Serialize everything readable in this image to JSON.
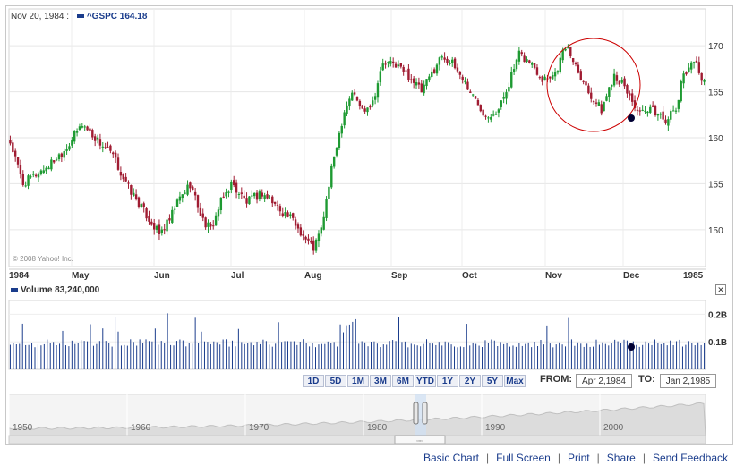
{
  "header": {
    "date": "Nov 20, 1984 :",
    "symbol": "^GSPC",
    "value": "164.18"
  },
  "copyright": "© 2008 Yahoo! Inc.",
  "volume": {
    "label": "Volume",
    "value": "83,240,000",
    "ticks": [
      "0.2B",
      "0.1B"
    ]
  },
  "range_buttons": [
    "1D",
    "5D",
    "1M",
    "3M",
    "6M",
    "YTD",
    "1Y",
    "2Y",
    "5Y",
    "Max"
  ],
  "from_label": "FROM:",
  "from_value": "Apr 2,1984",
  "to_label": "TO:",
  "to_value": "Jan 2,1985",
  "overview_years": [
    "1950",
    "1960",
    "1970",
    "1980",
    "1990",
    "2000"
  ],
  "links": [
    "Basic Chart",
    "Full Screen",
    "Print",
    "Share",
    "Send Feedback"
  ],
  "colors": {
    "up": "#1e9a32",
    "down": "#a01c32",
    "accent": "#1a3c8c",
    "highlight": "#cc0000"
  },
  "chart_data": {
    "type": "candlestick",
    "x_labels": [
      "1984",
      "May",
      "Jun",
      "Jul",
      "Aug",
      "Sep",
      "Oct",
      "Nov",
      "Dec",
      "1985"
    ],
    "y_ticks": [
      150,
      155,
      160,
      165,
      170
    ],
    "ylim": [
      146,
      174
    ],
    "close_trace": [
      [
        0,
        159.5
      ],
      [
        5,
        155
      ],
      [
        10,
        156
      ],
      [
        15,
        157
      ],
      [
        22,
        159
      ],
      [
        28,
        161.5
      ],
      [
        33,
        160
      ],
      [
        40,
        158
      ],
      [
        45,
        155
      ],
      [
        52,
        152
      ],
      [
        58,
        149.5
      ],
      [
        62,
        151
      ],
      [
        65,
        153
      ],
      [
        70,
        155
      ],
      [
        75,
        151
      ],
      [
        78,
        150
      ],
      [
        82,
        153
      ],
      [
        86,
        155
      ],
      [
        92,
        153
      ],
      [
        98,
        154
      ],
      [
        104,
        152.5
      ],
      [
        110,
        151
      ],
      [
        115,
        149
      ],
      [
        118,
        148
      ],
      [
        121,
        150
      ],
      [
        126,
        158
      ],
      [
        130,
        163
      ],
      [
        133,
        165
      ],
      [
        137,
        163
      ],
      [
        141,
        164
      ],
      [
        145,
        168
      ],
      [
        150,
        168
      ],
      [
        156,
        166.5
      ],
      [
        160,
        165
      ],
      [
        164,
        167
      ],
      [
        168,
        169
      ],
      [
        172,
        168
      ],
      [
        176,
        166.5
      ],
      [
        180,
        164.5
      ],
      [
        185,
        162.5
      ],
      [
        190,
        163
      ],
      [
        194,
        166
      ],
      [
        198,
        169
      ],
      [
        203,
        168
      ],
      [
        207,
        166.5
      ],
      [
        212,
        167
      ],
      [
        216,
        170
      ],
      [
        220,
        168
      ],
      [
        225,
        165
      ],
      [
        230,
        163
      ],
      [
        235,
        167
      ],
      [
        240,
        165
      ],
      [
        245,
        162.5
      ],
      [
        250,
        163
      ],
      [
        255,
        162
      ],
      [
        259,
        163
      ],
      [
        262,
        167
      ],
      [
        266,
        168.5
      ],
      [
        270,
        166
      ]
    ],
    "volume_ylim": [
      0,
      0.25
    ],
    "volume_base": 0.08
  }
}
